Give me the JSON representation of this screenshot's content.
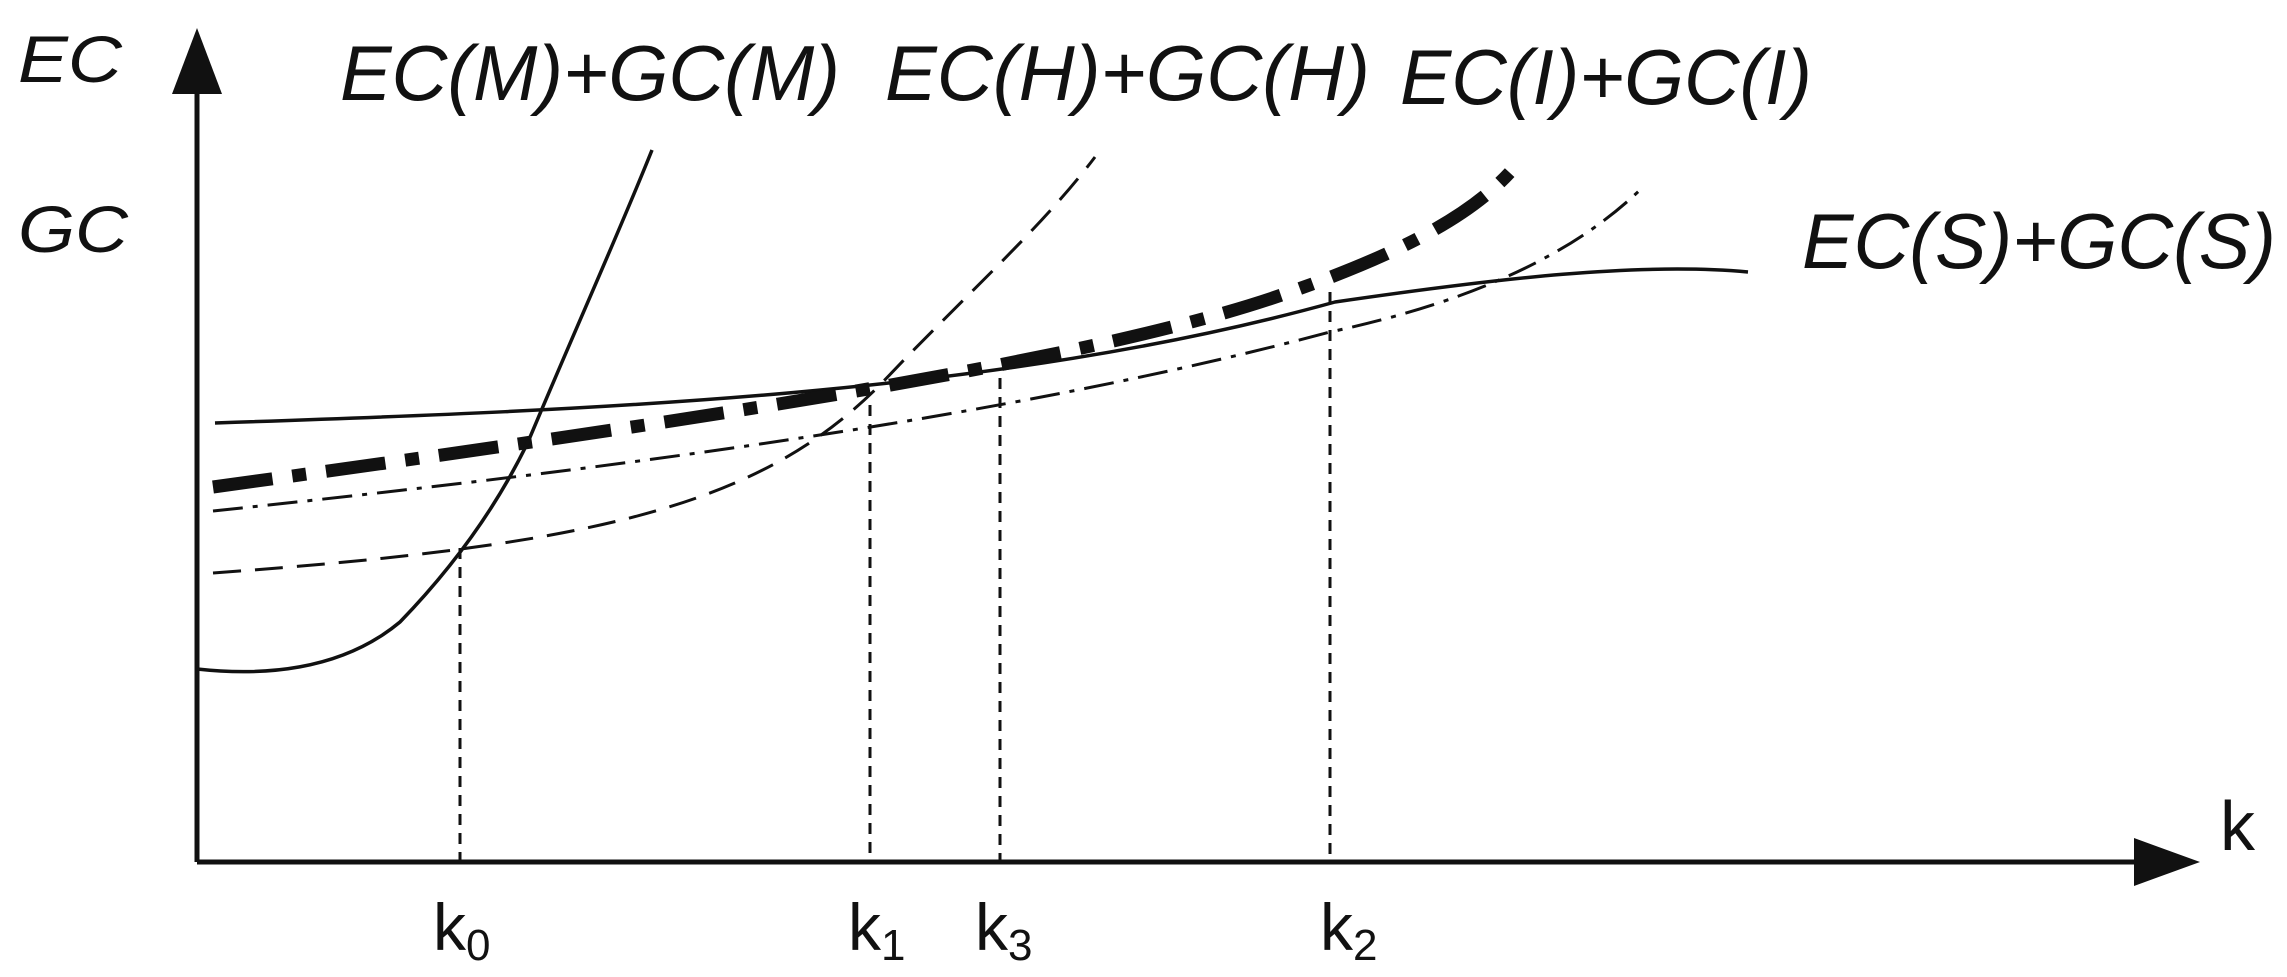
{
  "axes": {
    "y_label_top": "EC",
    "y_label_bottom": "GC",
    "x_label": "k"
  },
  "curves": [
    {
      "id": "M",
      "label": "EC(M)+GC(M)",
      "style": "solid-thin"
    },
    {
      "id": "H",
      "label": "EC(H)+GC(H)",
      "style": "dashed-thin"
    },
    {
      "id": "I",
      "label": "EC(I)+GC(I)",
      "style": "dash-dot-thick"
    },
    {
      "id": "S",
      "label": "EC(S)+GC(S)",
      "style": "solid-thin"
    },
    {
      "id": "D",
      "label": "",
      "style": "dash-dot-thin"
    }
  ],
  "ticks": [
    {
      "base": "k",
      "sub": "0"
    },
    {
      "base": "k",
      "sub": "1"
    },
    {
      "base": "k",
      "sub": "3"
    },
    {
      "base": "k",
      "sub": "2"
    }
  ],
  "colors": {
    "ink": "#111111",
    "background": "#ffffff"
  }
}
